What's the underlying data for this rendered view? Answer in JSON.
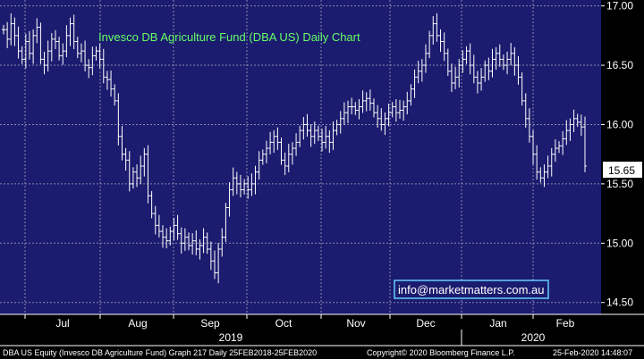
{
  "colors": {
    "plot_bg": "#1b1b6f",
    "grid": "#8a8ab0",
    "bars": "#ffffff",
    "title": "#66ff66",
    "email_text": "#ffffff",
    "email_border": "#66ccff",
    "price_tag_bg": "#ffffff"
  },
  "footer": {
    "left": "DBA US Equity (Invesco DB Agriculture Fund) Graph 217  Daily 25FEB2018-25FEB2020",
    "center": "Copyright© 2020 Bloomberg Finance L.P.",
    "right": "25-Feb-2020 14:48:07"
  },
  "chart_data": {
    "type": "ohlc",
    "title": "Invesco DB Agriculture Fund (DBA US) Daily Chart",
    "annotation": "info@marketmatters.com.au",
    "last_price_label": "15.65",
    "last_price": 15.65,
    "ylim": [
      14.4,
      17.05
    ],
    "yticks": [
      {
        "value": 17.0,
        "label": "17.00"
      },
      {
        "value": 16.5,
        "label": "16.50"
      },
      {
        "value": 16.0,
        "label": "16.00"
      },
      {
        "value": 15.5,
        "label": "15.50"
      },
      {
        "value": 15.0,
        "label": "15.00"
      },
      {
        "value": 14.5,
        "label": "14.50"
      }
    ],
    "months": [
      "Jul",
      "Aug",
      "Sep",
      "Oct",
      "Nov",
      "Dec",
      "Jan",
      "Feb"
    ],
    "years": [
      "2019",
      "2020"
    ],
    "close": [
      16.8,
      16.72,
      16.85,
      16.75,
      16.62,
      16.55,
      16.7,
      16.6,
      16.75,
      16.82,
      16.55,
      16.5,
      16.62,
      16.72,
      16.7,
      16.58,
      16.62,
      16.75,
      16.85,
      16.7,
      16.6,
      16.62,
      16.5,
      16.48,
      16.58,
      16.62,
      16.55,
      16.4,
      16.38,
      16.3,
      16.2,
      15.9,
      15.75,
      15.7,
      15.5,
      15.6,
      15.55,
      15.65,
      15.75,
      15.4,
      15.25,
      15.15,
      15.1,
      15.05,
      15.02,
      15.1,
      15.15,
      15.08,
      15.0,
      15.05,
      14.98,
      15.02,
      14.95,
      14.98,
      15.05,
      14.95,
      14.85,
      14.75,
      14.95,
      15.05,
      15.3,
      15.45,
      15.55,
      15.5,
      15.45,
      15.5,
      15.45,
      15.5,
      15.6,
      15.7,
      15.75,
      15.8,
      15.85,
      15.9,
      15.85,
      15.7,
      15.65,
      15.75,
      15.8,
      15.85,
      15.95,
      16.0,
      15.95,
      15.9,
      15.95,
      15.9,
      15.85,
      15.9,
      15.85,
      15.95,
      16.0,
      16.05,
      16.1,
      16.15,
      16.15,
      16.12,
      16.15,
      16.2,
      16.22,
      16.18,
      16.1,
      16.05,
      16.0,
      16.05,
      16.1,
      16.15,
      16.1,
      16.12,
      16.15,
      16.2,
      16.3,
      16.4,
      16.45,
      16.5,
      16.6,
      16.75,
      16.85,
      16.75,
      16.7,
      16.6,
      16.45,
      16.35,
      16.4,
      16.5,
      16.55,
      16.62,
      16.5,
      16.4,
      16.35,
      16.4,
      16.5,
      16.45,
      16.55,
      16.6,
      16.55,
      16.5,
      16.55,
      16.6,
      16.5,
      16.4,
      16.2,
      16.05,
      15.9,
      15.75,
      15.6,
      15.55,
      15.6,
      15.65,
      15.75,
      15.8,
      15.82,
      15.88,
      15.95,
      16.0,
      16.05,
      16.02,
      15.98,
      15.65
    ]
  }
}
